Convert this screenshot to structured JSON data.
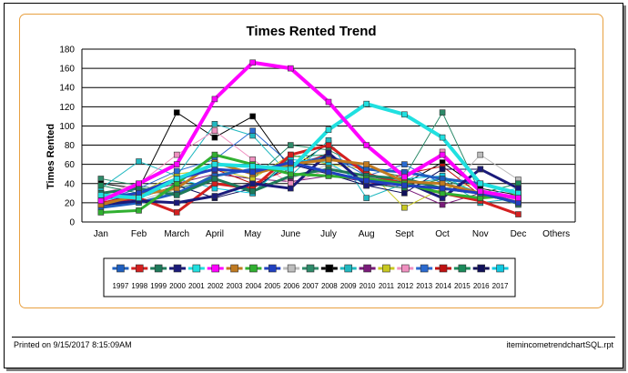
{
  "report": {
    "printed": "Printed on 9/15/2017  8:15:09AM",
    "filename": "itemincometrendchartSQL.rpt"
  },
  "chart_data": {
    "type": "line",
    "title": "Times Rented Trend",
    "xlabel": "",
    "ylabel": "Times Rented",
    "ylim": [
      0,
      180
    ],
    "yticks": [
      0,
      20,
      40,
      60,
      80,
      100,
      120,
      140,
      160,
      180
    ],
    "grid": true,
    "legend_position": "bottom",
    "categories": [
      "Jan",
      "Feb",
      "March",
      "April",
      "May",
      "June",
      "July",
      "Aug",
      "Sept",
      "Oct",
      "Nov",
      "Dec",
      "Others"
    ],
    "series": [
      {
        "name": "1997",
        "color": "#1f5fbf",
        "width": 3,
        "values": [
          15,
          20,
          30,
          48,
          55,
          58,
          68,
          55,
          52,
          45,
          40,
          30,
          null
        ]
      },
      {
        "name": "1998",
        "color": "#d42020",
        "width": 3,
        "values": [
          20,
          25,
          10,
          40,
          35,
          70,
          80,
          50,
          40,
          30,
          22,
          8,
          null
        ]
      },
      {
        "name": "1999",
        "color": "#1e7a5a",
        "width": 3,
        "values": [
          30,
          35,
          28,
          45,
          32,
          48,
          55,
          48,
          45,
          35,
          30,
          20,
          null
        ]
      },
      {
        "name": "2000",
        "color": "#1a1a7a",
        "width": 3,
        "values": [
          18,
          22,
          20,
          27,
          40,
          35,
          72,
          38,
          42,
          25,
          55,
          35,
          null
        ]
      },
      {
        "name": "2001",
        "color": "#20e0e0",
        "width": 4,
        "values": [
          28,
          25,
          45,
          60,
          58,
          55,
          96,
          123,
          112,
          88,
          40,
          30,
          null
        ]
      },
      {
        "name": "2002",
        "color": "#ff00ff",
        "width": 4,
        "values": [
          22,
          40,
          60,
          128,
          166,
          160,
          125,
          80,
          47,
          70,
          32,
          25,
          null
        ]
      },
      {
        "name": "2003",
        "color": "#c07a20",
        "width": 3,
        "values": [
          18,
          28,
          35,
          62,
          50,
          60,
          65,
          60,
          42,
          40,
          30,
          25,
          null
        ]
      },
      {
        "name": "2004",
        "color": "#30b030",
        "width": 3,
        "values": [
          10,
          12,
          40,
          70,
          60,
          50,
          48,
          45,
          40,
          30,
          25,
          28,
          null
        ]
      },
      {
        "name": "2005",
        "color": "#2040c0",
        "width": 3,
        "values": [
          25,
          30,
          45,
          55,
          52,
          62,
          52,
          43,
          38,
          35,
          30,
          20,
          null
        ]
      },
      {
        "name": "2006",
        "color": "#bdbdbd",
        "width": 1,
        "values": [
          30,
          22,
          35,
          40,
          36,
          45,
          60,
          40,
          45,
          28,
          70,
          44,
          null
        ]
      },
      {
        "name": "2007",
        "color": "#2e8b6a",
        "width": 1,
        "values": [
          45,
          38,
          30,
          50,
          45,
          80,
          75,
          55,
          47,
          114,
          30,
          18,
          null
        ]
      },
      {
        "name": "2008",
        "color": "#000000",
        "width": 1,
        "values": [
          40,
          35,
          114,
          88,
          110,
          55,
          82,
          48,
          40,
          62,
          35,
          28,
          null
        ]
      },
      {
        "name": "2009",
        "color": "#20b8c0",
        "width": 1,
        "values": [
          35,
          63,
          48,
          102,
          90,
          48,
          85,
          25,
          40,
          45,
          20,
          25,
          null
        ]
      },
      {
        "name": "2010",
        "color": "#7a1a7a",
        "width": 1,
        "values": [
          20,
          30,
          40,
          50,
          45,
          42,
          48,
          42,
          35,
          18,
          30,
          22,
          null
        ]
      },
      {
        "name": "2011",
        "color": "#c8c820",
        "width": 1,
        "values": [
          25,
          30,
          50,
          55,
          45,
          70,
          60,
          55,
          15,
          35,
          40,
          28,
          null
        ]
      },
      {
        "name": "2012",
        "color": "#f090c0",
        "width": 1,
        "values": [
          30,
          40,
          70,
          95,
          65,
          40,
          55,
          47,
          40,
          73,
          32,
          22,
          null
        ]
      },
      {
        "name": "2013",
        "color": "#2a6ad0",
        "width": 1,
        "values": [
          22,
          35,
          53,
          65,
          95,
          60,
          70,
          48,
          60,
          40,
          28,
          20,
          null
        ]
      },
      {
        "name": "2014",
        "color": "#c01010",
        "width": 1,
        "values": [
          20,
          28,
          45,
          55,
          40,
          55,
          72,
          38,
          50,
          58,
          28,
          20,
          null
        ]
      },
      {
        "name": "2015",
        "color": "#1a8a5a",
        "width": 1,
        "values": [
          38,
          30,
          35,
          45,
          30,
          68,
          70,
          40,
          35,
          45,
          30,
          40,
          null
        ]
      },
      {
        "name": "2016",
        "color": "#10105a",
        "width": 1,
        "values": [
          25,
          25,
          38,
          25,
          35,
          60,
          50,
          38,
          30,
          55,
          55,
          35,
          null
        ]
      },
      {
        "name": "2017",
        "color": "#10c8e0",
        "width": 1,
        "values": [
          22,
          30,
          45,
          35,
          30,
          65,
          62,
          38,
          45,
          48,
          28,
          35,
          null
        ]
      }
    ]
  }
}
